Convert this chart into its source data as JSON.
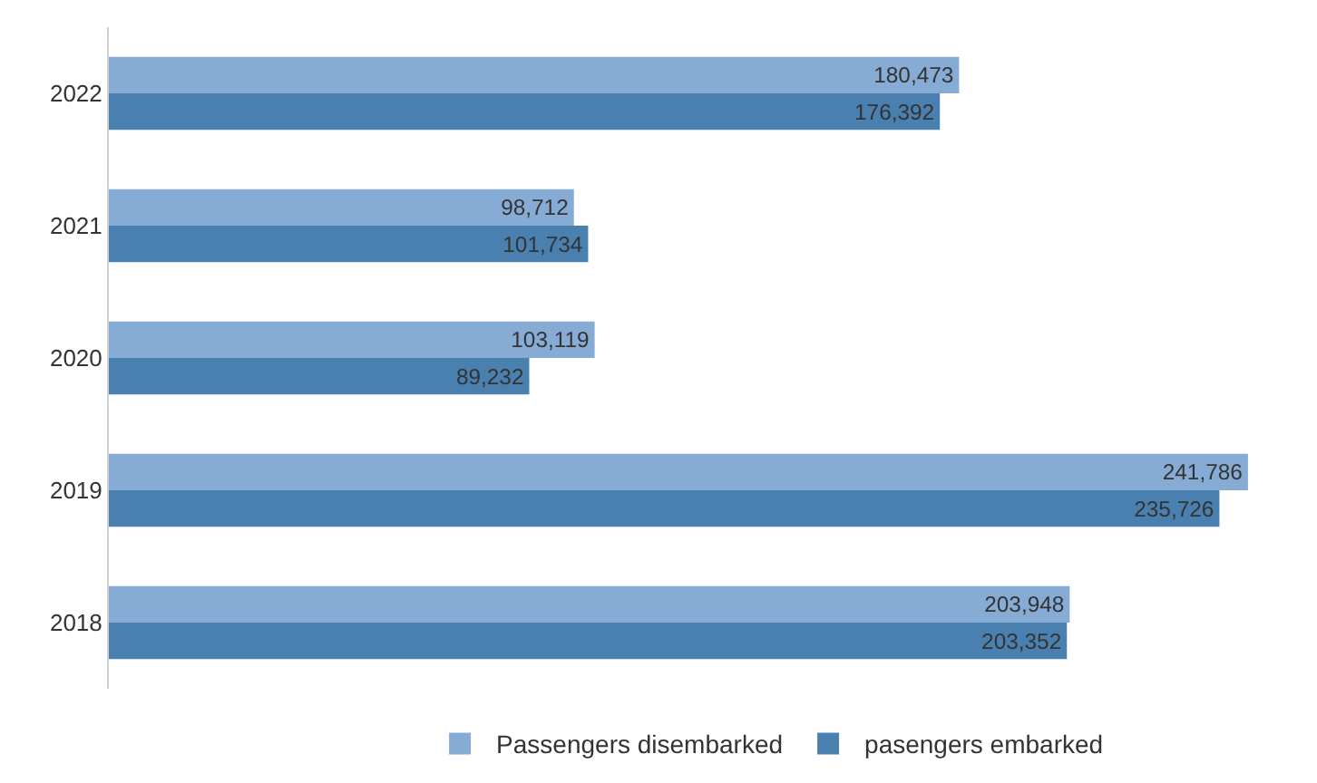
{
  "chart_data": {
    "type": "bar",
    "orientation": "horizontal",
    "categories": [
      "2022",
      "2021",
      "2020",
      "2019",
      "2018"
    ],
    "series": [
      {
        "name": "Passengers disembarked",
        "color": "#86acd6",
        "values": [
          180473,
          98712,
          103119,
          241786,
          203948
        ],
        "value_labels": [
          "180,473",
          "98,712",
          "103,119",
          "241,786",
          "203,948"
        ]
      },
      {
        "name": "pasengers embarked",
        "color": "#4a80b0",
        "values": [
          176392,
          101734,
          89232,
          235726,
          203352
        ],
        "value_labels": [
          "176,392",
          "101,734",
          "89,232",
          "235,726",
          "203,352"
        ]
      }
    ],
    "legend": "bottom"
  }
}
